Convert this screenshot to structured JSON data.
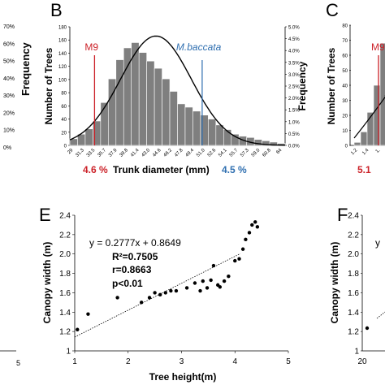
{
  "chart_data": [
    {
      "panel": "left-partial",
      "type": "bar",
      "ylabel": "Frequency",
      "y_ticks": [
        "70%",
        "60%",
        "50%",
        "40%",
        "30%",
        "20%",
        "10%",
        "0%"
      ],
      "x_ticks": [
        "5"
      ]
    },
    {
      "panel": "B",
      "type": "bar",
      "xlabel": "Trunk diameter (mm)",
      "ylabel": "Number of Trees",
      "ylabel_right": "Frequency",
      "ylim": [
        0,
        180
      ],
      "y_ticks": [
        "0",
        "20",
        "40",
        "60",
        "80",
        "100",
        "120",
        "140",
        "160",
        "180"
      ],
      "y2_ticks": [
        "0.0%",
        "0.5%",
        "1.0%",
        "1.5%",
        "2.0%",
        "2.5%",
        "3.0%",
        "3.5%",
        "4.0%",
        "4.5%",
        "5.0%"
      ],
      "x_ticks": [
        "29",
        "31.3",
        "33.5",
        "35.7",
        "37.9",
        "39.8",
        "41.4",
        "43.0",
        "44.6",
        "46.2",
        "47.8",
        "49.4",
        "51.0",
        "52.6",
        "54.1",
        "55.7",
        "57.3",
        "59.0",
        "60.8",
        "64"
      ],
      "values": [
        10,
        17,
        25,
        37,
        65,
        101,
        130,
        148,
        156,
        141,
        128,
        117,
        101,
        82,
        63,
        58,
        52,
        46,
        40,
        31,
        24,
        17,
        14,
        12,
        9,
        7,
        5,
        3
      ],
      "markers": [
        {
          "name": "M9",
          "color": "#cc2229",
          "x_index": 3
        },
        {
          "name": "M.baccata",
          "color": "#2f6fb0",
          "x_index": 17
        }
      ],
      "annotation_left": "4.6 %",
      "annotation_right": "4.5 %",
      "curve": "normal"
    },
    {
      "panel": "C-partial",
      "type": "bar",
      "ylabel": "Number of Trees",
      "y_ticks": [
        "80",
        "70",
        "60",
        "50",
        "40",
        "30",
        "20",
        "10",
        "0"
      ],
      "x_ticks": [
        "1.2",
        "1.4",
        "1."
      ],
      "marker": {
        "name": "M9",
        "color": "#cc2229"
      },
      "annotation_left": "5.1"
    },
    {
      "panel": "E",
      "type": "scatter",
      "xlabel": "Tree height(m)",
      "ylabel": "Canopy width (m)",
      "xlim": [
        1,
        5
      ],
      "ylim": [
        1,
        2.4
      ],
      "x_ticks": [
        "1",
        "2",
        "3",
        "4",
        "5"
      ],
      "y_ticks": [
        "1",
        "1.2",
        "1.4",
        "1.6",
        "1.8",
        "2.0",
        "2.2",
        "2.4"
      ],
      "equation": "y = 0.2777x + 0.8649",
      "r2": "R²=0.7505",
      "r": "r=0.8663",
      "p": "p<0.01",
      "trendline": {
        "slope": 0.2777,
        "intercept": 0.8649
      },
      "points": [
        [
          1.05,
          1.22
        ],
        [
          1.25,
          1.38
        ],
        [
          1.8,
          1.55
        ],
        [
          2.25,
          1.5
        ],
        [
          2.4,
          1.55
        ],
        [
          2.5,
          1.6
        ],
        [
          2.6,
          1.58
        ],
        [
          2.7,
          1.6
        ],
        [
          2.8,
          1.62
        ],
        [
          2.9,
          1.62
        ],
        [
          3.1,
          1.65
        ],
        [
          3.25,
          1.7
        ],
        [
          3.35,
          1.62
        ],
        [
          3.4,
          1.72
        ],
        [
          3.48,
          1.65
        ],
        [
          3.55,
          1.73
        ],
        [
          3.6,
          1.88
        ],
        [
          3.68,
          1.68
        ],
        [
          3.72,
          1.66
        ],
        [
          3.8,
          1.72
        ],
        [
          3.88,
          1.77
        ],
        [
          4.0,
          1.93
        ],
        [
          4.08,
          1.95
        ],
        [
          4.15,
          2.05
        ],
        [
          4.2,
          2.15
        ],
        [
          4.27,
          2.22
        ],
        [
          4.32,
          2.3
        ],
        [
          4.38,
          2.33
        ],
        [
          4.42,
          2.28
        ]
      ]
    },
    {
      "panel": "F-partial",
      "type": "scatter",
      "ylabel": "Canopy width (m)",
      "y_ticks": [
        "2.4",
        "2.2",
        "2.0",
        "1.8",
        "1.6",
        "1.4",
        "1.2",
        "1"
      ],
      "x_ticks": [
        "20"
      ],
      "equation_partial": "y"
    }
  ],
  "labels": {
    "panel_b": "B",
    "panel_c": "C",
    "panel_e": "E",
    "panel_f": "F"
  },
  "colors": {
    "bar": "#7f7f7f",
    "red": "#cc2229",
    "blue": "#2f6fb0"
  }
}
